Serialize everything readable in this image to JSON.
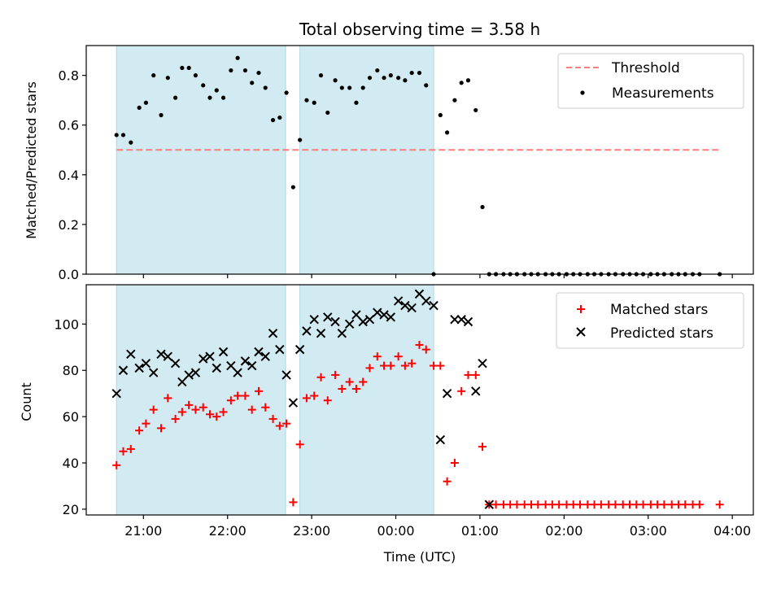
{
  "title": "Total observing time = 3.58 h",
  "colors": {
    "threshold": "#ff7f7f",
    "measurements": "#000000",
    "matched": "#ff0000",
    "predicted": "#000000",
    "observing_span": "#add8e6"
  },
  "chart_data": [
    {
      "type": "scatter",
      "panel": "top",
      "ylabel": "Matched/Predicted stars",
      "xlabel": "",
      "ylim": [
        0,
        0.92
      ],
      "xlim_hours": [
        20.32,
        28.25
      ],
      "yticks": [
        0.0,
        0.2,
        0.4,
        0.6,
        0.8
      ],
      "ytick_labels": [
        "0.0",
        "0.2",
        "0.4",
        "0.6",
        "0.8"
      ],
      "legend": {
        "position": "top-right",
        "entries": [
          "Threshold",
          "Measurements"
        ]
      },
      "threshold": {
        "name": "Threshold",
        "value": 0.5,
        "x_start": 20.68,
        "x_end": 27.85,
        "style": "dashed"
      },
      "shaded_spans_hours": [
        [
          20.68,
          22.69
        ],
        [
          22.86,
          24.45
        ]
      ],
      "series": [
        {
          "name": "Measurements",
          "x_hours": [
            20.68,
            20.76,
            20.85,
            20.95,
            21.03,
            21.12,
            21.21,
            21.29,
            21.38,
            21.46,
            21.54,
            21.62,
            21.71,
            21.79,
            21.87,
            21.95,
            22.04,
            22.12,
            22.21,
            22.29,
            22.37,
            22.45,
            22.54,
            22.62,
            22.7,
            22.78,
            22.86,
            22.94,
            23.03,
            23.11,
            23.19,
            23.28,
            23.36,
            23.45,
            23.53,
            23.61,
            23.69,
            23.78,
            23.86,
            23.94,
            24.03,
            24.11,
            24.19,
            24.28,
            24.36,
            24.45,
            24.53,
            24.61,
            24.7,
            24.78,
            24.86,
            24.95,
            25.03,
            25.11,
            25.19,
            25.28,
            25.36,
            25.44,
            25.53,
            25.61,
            25.69,
            25.78,
            25.86,
            25.94,
            26.03,
            26.11,
            26.19,
            26.28,
            26.36,
            26.44,
            26.53,
            26.61,
            26.7,
            26.78,
            26.86,
            26.94,
            27.03,
            27.11,
            27.19,
            27.28,
            27.36,
            27.44,
            27.53,
            27.61,
            27.85
          ],
          "values": [
            0.56,
            0.56,
            0.53,
            0.67,
            0.69,
            0.8,
            0.64,
            0.79,
            0.71,
            0.83,
            0.83,
            0.8,
            0.76,
            0.71,
            0.74,
            0.71,
            0.82,
            0.87,
            0.82,
            0.77,
            0.81,
            0.75,
            0.62,
            0.63,
            0.73,
            0.35,
            0.54,
            0.7,
            0.69,
            0.8,
            0.65,
            0.78,
            0.75,
            0.75,
            0.69,
            0.75,
            0.79,
            0.82,
            0.79,
            0.8,
            0.79,
            0.78,
            0.81,
            0.81,
            0.76,
            0.0,
            0.64,
            0.57,
            0.7,
            0.77,
            0.78,
            0.66,
            0.27,
            0.0,
            0.0,
            0.0,
            0.0,
            0.0,
            0.0,
            0.0,
            0.0,
            0.0,
            0.0,
            0.0,
            0.0,
            0.0,
            0.0,
            0.0,
            0.0,
            0.0,
            0.0,
            0.0,
            0.0,
            0.0,
            0.0,
            0.0,
            0.0,
            0.0,
            0.0,
            0.0,
            0.0,
            0.0,
            0.0,
            0.0,
            0.0
          ]
        }
      ]
    },
    {
      "type": "scatter",
      "panel": "bottom",
      "xlabel": "Time (UTC)",
      "ylabel": "Count",
      "ylim": [
        17.5,
        117
      ],
      "xlim_hours": [
        20.32,
        28.25
      ],
      "yticks": [
        20,
        40,
        60,
        80,
        100
      ],
      "ytick_labels": [
        "20",
        "40",
        "60",
        "80",
        "100"
      ],
      "xticks_hours": [
        21,
        22,
        23,
        24,
        25,
        26,
        27,
        28
      ],
      "xtick_labels": [
        "21:00",
        "22:00",
        "23:00",
        "00:00",
        "01:00",
        "02:00",
        "03:00",
        "04:00"
      ],
      "legend": {
        "position": "top-right",
        "entries": [
          "Matched stars",
          "Predicted stars"
        ]
      },
      "shaded_spans_hours": [
        [
          20.68,
          22.69
        ],
        [
          22.86,
          24.45
        ]
      ],
      "series": [
        {
          "name": "Matched stars",
          "marker": "plus",
          "x_hours": [
            20.68,
            20.76,
            20.85,
            20.95,
            21.03,
            21.12,
            21.21,
            21.29,
            21.38,
            21.46,
            21.54,
            21.62,
            21.71,
            21.79,
            21.87,
            21.95,
            22.04,
            22.12,
            22.21,
            22.29,
            22.37,
            22.45,
            22.54,
            22.62,
            22.7,
            22.78,
            22.86,
            22.94,
            23.03,
            23.11,
            23.19,
            23.28,
            23.36,
            23.45,
            23.53,
            23.61,
            23.69,
            23.78,
            23.86,
            23.94,
            24.03,
            24.11,
            24.19,
            24.28,
            24.36,
            24.45,
            24.53,
            24.61,
            24.7,
            24.78,
            24.86,
            24.95,
            25.03,
            25.11,
            25.19,
            25.28,
            25.36,
            25.44,
            25.53,
            25.61,
            25.69,
            25.78,
            25.86,
            25.94,
            26.03,
            26.11,
            26.19,
            26.28,
            26.36,
            26.44,
            26.53,
            26.61,
            26.7,
            26.78,
            26.86,
            26.94,
            27.03,
            27.11,
            27.19,
            27.28,
            27.36,
            27.44,
            27.53,
            27.61,
            27.85
          ],
          "values": [
            39,
            45,
            46,
            54,
            57,
            63,
            55,
            68,
            59,
            62,
            65,
            63,
            64,
            61,
            60,
            62,
            67,
            69,
            69,
            63,
            71,
            64,
            59,
            56,
            57,
            23,
            48,
            68,
            69,
            77,
            67,
            78,
            72,
            75,
            72,
            75,
            81,
            86,
            82,
            82,
            86,
            82,
            83,
            91,
            89,
            82,
            82,
            32,
            40,
            71,
            78,
            78,
            47,
            22,
            22,
            22,
            22,
            22,
            22,
            22,
            22,
            22,
            22,
            22,
            22,
            22,
            22,
            22,
            22,
            22,
            22,
            22,
            22,
            22,
            22,
            22,
            22,
            22,
            22,
            22,
            22,
            22,
            22,
            22,
            22
          ]
        },
        {
          "name": "Predicted stars",
          "marker": "x",
          "x_hours": [
            20.68,
            20.76,
            20.85,
            20.95,
            21.03,
            21.12,
            21.21,
            21.29,
            21.38,
            21.46,
            21.54,
            21.62,
            21.71,
            21.79,
            21.87,
            21.95,
            22.04,
            22.12,
            22.21,
            22.29,
            22.37,
            22.45,
            22.54,
            22.62,
            22.7,
            22.78,
            22.86,
            22.94,
            23.03,
            23.11,
            23.19,
            23.28,
            23.36,
            23.45,
            23.53,
            23.61,
            23.69,
            23.78,
            23.86,
            23.94,
            24.03,
            24.11,
            24.19,
            24.28,
            24.36,
            24.45,
            24.53,
            24.61,
            24.7,
            24.78,
            24.86,
            24.95,
            25.03,
            25.11
          ],
          "values": [
            70,
            80,
            87,
            81,
            83,
            79,
            87,
            86,
            83,
            75,
            78,
            79,
            85,
            86,
            81,
            88,
            82,
            79,
            84,
            82,
            88,
            86,
            96,
            89,
            78,
            66,
            89,
            97,
            102,
            96,
            103,
            101,
            96,
            100,
            104,
            101,
            102,
            105,
            104,
            103,
            110,
            108,
            107,
            113,
            110,
            108,
            50,
            70,
            102,
            102,
            101,
            71,
            83,
            22
          ]
        }
      ]
    }
  ]
}
